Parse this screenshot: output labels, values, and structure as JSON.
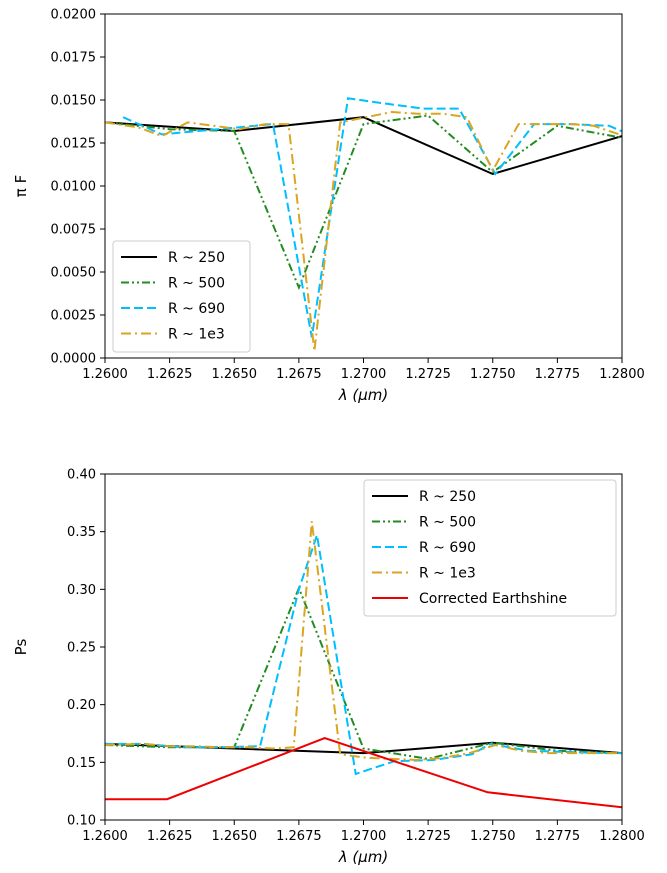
{
  "chart_data": [
    {
      "type": "line",
      "xlabel": "λ (μm)",
      "ylabel": "π F",
      "xlim": [
        1.26,
        1.28
      ],
      "ylim": [
        0.0,
        0.02
      ],
      "xticks": [
        1.26,
        1.2625,
        1.265,
        1.2675,
        1.27,
        1.2725,
        1.275,
        1.2775,
        1.28
      ],
      "xtick_labels": [
        "1.2600",
        "1.2625",
        "1.2650",
        "1.2675",
        "1.2700",
        "1.2725",
        "1.2750",
        "1.2775",
        "1.2800"
      ],
      "yticks": [
        0.0,
        0.0025,
        0.005,
        0.0075,
        0.01,
        0.0125,
        0.015,
        0.0175,
        0.02
      ],
      "ytick_labels": [
        "0.0000",
        "0.0025",
        "0.0050",
        "0.0075",
        "0.0100",
        "0.0125",
        "0.0150",
        "0.0175",
        "0.0200"
      ],
      "legend": "lower-left",
      "grid": false,
      "series": [
        {
          "name": "R ~ 250",
          "color": "#000000",
          "style": "solid",
          "x": [
            1.26,
            1.265,
            1.27,
            1.275,
            1.28
          ],
          "y": [
            0.0137,
            0.0132,
            0.014,
            0.0107,
            0.0129
          ]
        },
        {
          "name": "R ~ 500",
          "color": "#228b22",
          "style": "dashdotdot",
          "x": [
            1.26,
            1.2625,
            1.265,
            1.2675,
            1.27,
            1.2725,
            1.275,
            1.2775,
            1.28
          ],
          "y": [
            0.0137,
            0.0133,
            0.0132,
            0.0041,
            0.0136,
            0.0141,
            0.0108,
            0.0135,
            0.0128
          ]
        },
        {
          "name": "R ~ 690",
          "color": "#00bfff",
          "style": "dashed",
          "x": [
            1.2607,
            1.2622,
            1.2636,
            1.2651,
            1.2665,
            1.268,
            1.2694,
            1.2708,
            1.2723,
            1.2737,
            1.2751,
            1.2766,
            1.278,
            1.2795,
            1.2809
          ],
          "y": [
            0.014,
            0.013,
            0.0132,
            0.0134,
            0.0136,
            0.0012,
            0.0151,
            0.0148,
            0.0145,
            0.0145,
            0.0107,
            0.0136,
            0.0136,
            0.0135,
            0.0126
          ]
        },
        {
          "name": "R ~ 1e3",
          "color": "#daa520",
          "style": "dashdot",
          "x": [
            1.26,
            1.2613,
            1.2622,
            1.2632,
            1.2642,
            1.2652,
            1.2662,
            1.2671,
            1.2681,
            1.2691,
            1.2701,
            1.2711,
            1.2721,
            1.2731,
            1.274,
            1.275,
            1.276,
            1.277,
            1.278,
            1.2789,
            1.2799
          ],
          "y": [
            0.0137,
            0.0134,
            0.0129,
            0.0137,
            0.0135,
            0.0133,
            0.0136,
            0.0136,
            0.0004,
            0.0137,
            0.014,
            0.0143,
            0.0142,
            0.0142,
            0.014,
            0.0109,
            0.0136,
            0.0136,
            0.0136,
            0.0135,
            0.013
          ]
        }
      ]
    },
    {
      "type": "line",
      "xlabel": "λ (μm)",
      "ylabel": "Ps",
      "xlim": [
        1.26,
        1.28
      ],
      "ylim": [
        0.1,
        0.4
      ],
      "xticks": [
        1.26,
        1.2625,
        1.265,
        1.2675,
        1.27,
        1.2725,
        1.275,
        1.2775,
        1.28
      ],
      "xtick_labels": [
        "1.2600",
        "1.2625",
        "1.2650",
        "1.2675",
        "1.2700",
        "1.2725",
        "1.2750",
        "1.2775",
        "1.2800"
      ],
      "yticks": [
        0.1,
        0.15,
        0.2,
        0.25,
        0.3,
        0.35,
        0.4
      ],
      "ytick_labels": [
        "0.10",
        "0.15",
        "0.20",
        "0.25",
        "0.30",
        "0.35",
        "0.40"
      ],
      "legend": "upper-right",
      "grid": false,
      "series": [
        {
          "name": "R ~ 250",
          "color": "#000000",
          "style": "solid",
          "x": [
            1.26,
            1.265,
            1.27,
            1.275,
            1.28
          ],
          "y": [
            0.166,
            0.162,
            0.158,
            0.167,
            0.158
          ]
        },
        {
          "name": "R ~ 500",
          "color": "#228b22",
          "style": "dashdotdot",
          "x": [
            1.26,
            1.2625,
            1.265,
            1.2675,
            1.27,
            1.2725,
            1.275,
            1.2775,
            1.28
          ],
          "y": [
            0.165,
            0.163,
            0.163,
            0.301,
            0.162,
            0.153,
            0.167,
            0.16,
            0.158
          ]
        },
        {
          "name": "R ~ 690",
          "color": "#00bfff",
          "style": "dashed",
          "x": [
            1.26,
            1.2615,
            1.263,
            1.2645,
            1.266,
            1.2675,
            1.2682,
            1.2697,
            1.2712,
            1.2727,
            1.2742,
            1.2749,
            1.2764,
            1.2779,
            1.2794,
            1.28
          ],
          "y": [
            0.166,
            0.166,
            0.163,
            0.163,
            0.164,
            0.3,
            0.347,
            0.14,
            0.151,
            0.152,
            0.157,
            0.166,
            0.16,
            0.159,
            0.158,
            0.158
          ]
        },
        {
          "name": "R ~ 1e3",
          "color": "#daa520",
          "style": "dashdot",
          "x": [
            1.26,
            1.2615,
            1.2625,
            1.2635,
            1.2645,
            1.2655,
            1.2665,
            1.2673,
            1.268,
            1.2691,
            1.2701,
            1.2711,
            1.2721,
            1.2731,
            1.2741,
            1.2751,
            1.2761,
            1.2771,
            1.2781,
            1.2791,
            1.28
          ],
          "y": [
            0.165,
            0.166,
            0.164,
            0.164,
            0.163,
            0.163,
            0.162,
            0.163,
            0.359,
            0.157,
            0.154,
            0.153,
            0.152,
            0.154,
            0.158,
            0.165,
            0.16,
            0.158,
            0.158,
            0.158,
            0.158
          ]
        },
        {
          "name": "Corrected Earthshine",
          "color": "#ee0000",
          "style": "solid",
          "x": [
            1.26,
            1.2624,
            1.2685,
            1.2748,
            1.28
          ],
          "y": [
            0.118,
            0.118,
            0.171,
            0.124,
            0.111
          ]
        }
      ]
    }
  ]
}
